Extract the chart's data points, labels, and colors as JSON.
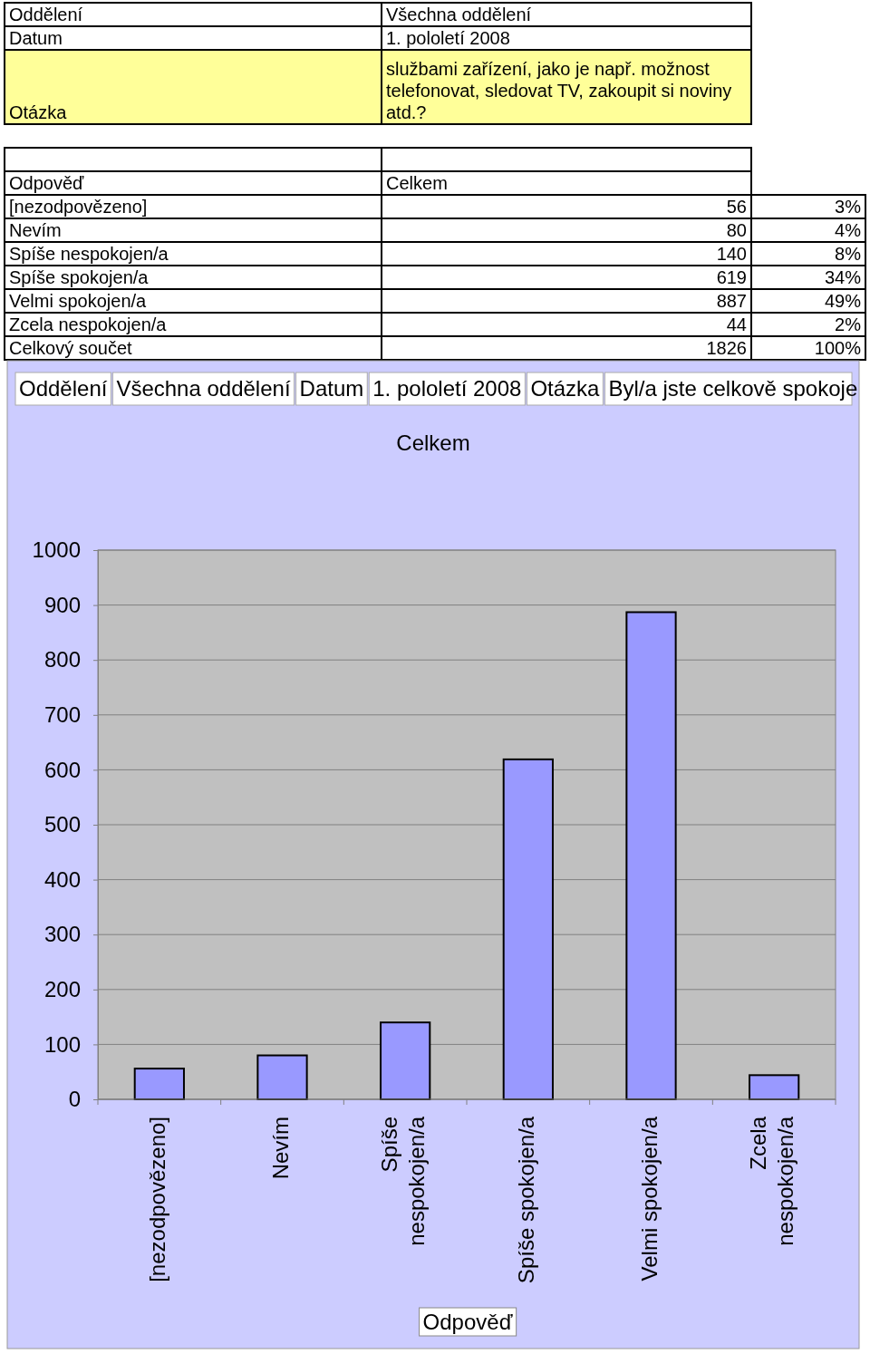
{
  "chart_data": {
    "type": "bar",
    "title": "Celkem",
    "xlabel": "Odpověď",
    "categories": [
      "[nezodpovězeno]",
      "Nevím",
      "Spíše nespokojen/a",
      "Spíše spokojen/a",
      "Velmi spokojen/a",
      "Zcela nespokojen/a"
    ],
    "values": [
      56,
      80,
      140,
      619,
      887,
      44
    ],
    "color": "#9999ff",
    "ylim": [
      0,
      1000
    ],
    "yticks": [
      0,
      100,
      200,
      300,
      400,
      500,
      600,
      700,
      800,
      900,
      1000
    ],
    "grid": "y",
    "annotations": [
      "Oddělení",
      "Všechna oddělení",
      "Datum",
      "1. pololetí 2008",
      "Otázka",
      "službami zařízení, jako je např. možnost telefonovat, sledovat TV, zakoupit si noviny atd.?",
      "Odpověď",
      "Celkem",
      "3%",
      "4%",
      "8%",
      "34%",
      "49%",
      "2%",
      "Celkový součet",
      "1826",
      "100%",
      "Oddělení",
      "Všechna oddělení",
      "Datum",
      "1. pololetí 2008",
      "Otázka",
      "Byl/a jste celkově spokoje",
      "56",
      "80",
      "140",
      "619",
      "887",
      "44"
    ]
  }
}
